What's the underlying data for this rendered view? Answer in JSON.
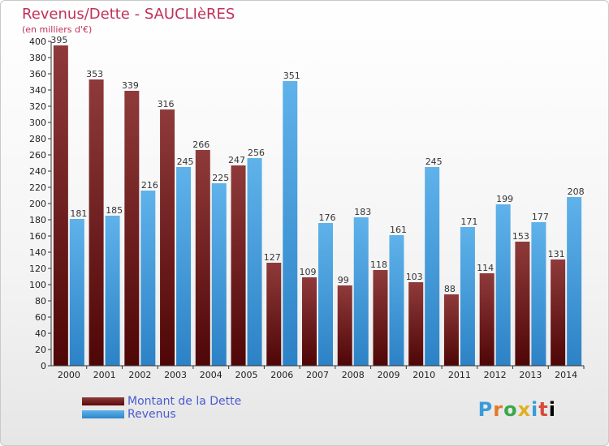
{
  "title": "Revenus/Dette - SAUCLIèRES",
  "subtitle": "(en milliers d'€)",
  "logo": "Proxiti",
  "colors": {
    "debt": "#6e1c1c",
    "revenue": "#45a0e0",
    "title": "#c0305a",
    "legend_text": "#4a5bd0"
  },
  "legend": [
    {
      "label": "Montant de la Dette",
      "color": "#6e1c1c"
    },
    {
      "label": "Revenus",
      "color": "#45a0e0"
    }
  ],
  "chart_data": {
    "type": "bar",
    "categories": [
      "2000",
      "2001",
      "2002",
      "2003",
      "2004",
      "2005",
      "2006",
      "2007",
      "2008",
      "2009",
      "2010",
      "2011",
      "2012",
      "2013",
      "2014"
    ],
    "series": [
      {
        "name": "Montant de la Dette",
        "values": [
          395,
          353,
          339,
          316,
          266,
          247,
          127,
          109,
          99,
          118,
          103,
          88,
          114,
          153,
          131
        ]
      },
      {
        "name": "Revenus",
        "values": [
          181,
          185,
          216,
          245,
          225,
          256,
          351,
          176,
          183,
          161,
          245,
          171,
          199,
          177,
          208
        ]
      }
    ],
    "ylim": [
      0,
      400
    ],
    "ytick_step": 20,
    "grid": false,
    "legend_position": "bottom-left"
  }
}
